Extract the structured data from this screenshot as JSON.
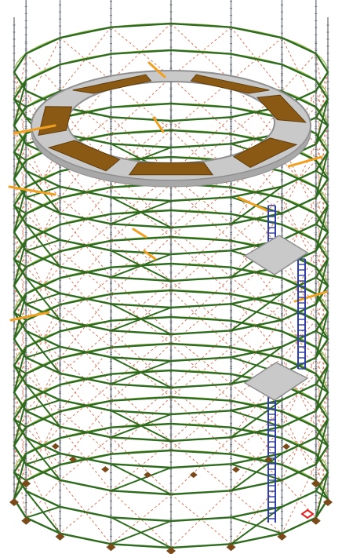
{
  "colors": {
    "background": "#ffffff",
    "ledger": "#2e6b1e",
    "ledger_light": "#9cbf5a",
    "standard": "#8a8f96",
    "brace": "#d86a4a",
    "deck": "#c9c9c9",
    "deck_edge": "#8f8f8f",
    "board": "#8a5a14",
    "orange_tube": "#f0a020",
    "ladder": "#2f3ea8",
    "base_plate": "#7a4a1a",
    "support_marker": "#e02020"
  },
  "icons": {
    "base_plate": "base-plate-icon",
    "support_marker": "support-marker-icon"
  }
}
